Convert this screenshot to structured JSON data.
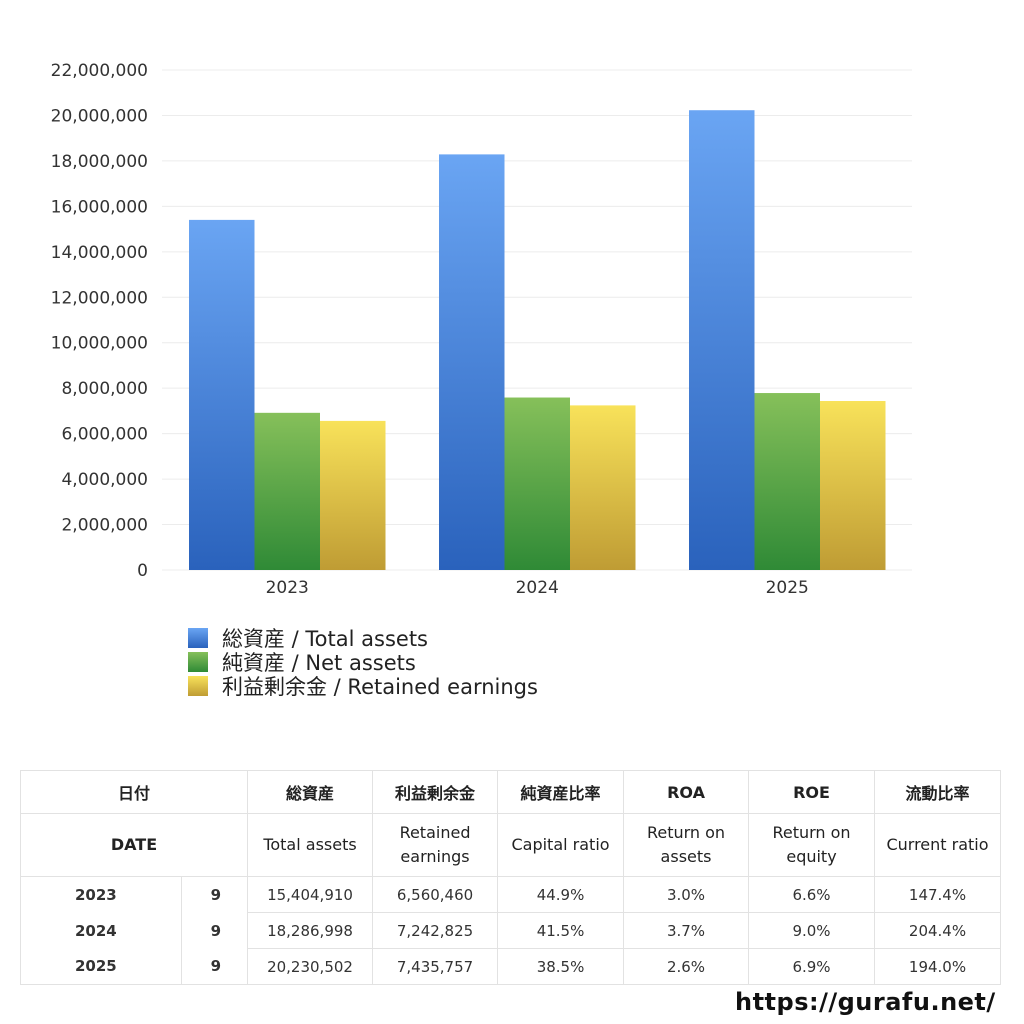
{
  "chart_data": {
    "type": "bar",
    "categories": [
      "2023",
      "2024",
      "2025"
    ],
    "series": [
      {
        "name": "総資産 / Total assets",
        "values": [
          15404910,
          18286998,
          20230502
        ]
      },
      {
        "name": "純資産 / Net assets",
        "values": [
          6916000,
          7589000,
          7786000
        ]
      },
      {
        "name": "利益剰余金 / Retained earnings",
        "values": [
          6560460,
          7242825,
          7435757
        ]
      }
    ],
    "ylim": [
      0,
      22000000
    ],
    "yticks": [
      0,
      2000000,
      4000000,
      6000000,
      8000000,
      10000000,
      12000000,
      14000000,
      16000000,
      18000000,
      20000000,
      22000000
    ],
    "ytick_labels": [
      "0",
      "2,000,000",
      "4,000,000",
      "6,000,000",
      "8,000,000",
      "10,000,000",
      "12,000,000",
      "14,000,000",
      "16,000,000",
      "18,000,000",
      "20,000,000",
      "22,000,000"
    ],
    "grid": true,
    "legend_position": "bottom-left",
    "colors": {
      "total": {
        "top": "#6aa5f3",
        "bottom": "#2a62bc"
      },
      "net": {
        "top": "#86c05a",
        "bottom": "#2f8a36"
      },
      "retained": {
        "top": "#f8e25a",
        "bottom": "#bf9c34"
      }
    }
  },
  "table": {
    "header_jp": {
      "date": "日付",
      "total_assets": "総資産",
      "retained": "利益剰余金",
      "capital_ratio": "純資産比率",
      "roa": "ROA",
      "roe": "ROE",
      "current_ratio": "流動比率"
    },
    "header_en": {
      "date": "DATE",
      "total_assets": "Total assets",
      "retained_1": "Retained",
      "retained_2": "earnings",
      "capital_ratio": "Capital ratio",
      "roa_1": "Return on",
      "roa_2": "assets",
      "roe_1": "Return on",
      "roe_2": "equity",
      "current_ratio": "Current ratio"
    },
    "rows": [
      {
        "year": "2023",
        "month": "9",
        "total_assets": "15,404,910",
        "retained": "6,560,460",
        "capital_ratio": "44.9%",
        "roa": "3.0%",
        "roe": "6.6%",
        "current_ratio": "147.4%"
      },
      {
        "year": "2024",
        "month": "9",
        "total_assets": "18,286,998",
        "retained": "7,242,825",
        "capital_ratio": "41.5%",
        "roa": "3.7%",
        "roe": "9.0%",
        "current_ratio": "204.4%"
      },
      {
        "year": "2025",
        "month": "9",
        "total_assets": "20,230,502",
        "retained": "7,435,757",
        "capital_ratio": "38.5%",
        "roa": "2.6%",
        "roe": "6.9%",
        "current_ratio": "194.0%"
      }
    ]
  },
  "footer": {
    "site": "https://gurafu.net/"
  }
}
